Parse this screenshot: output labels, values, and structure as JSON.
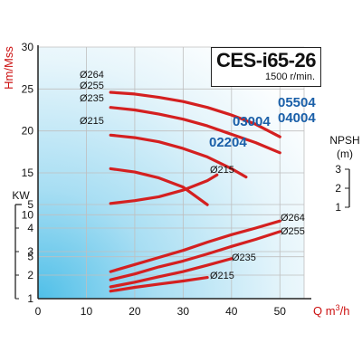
{
  "chart_data": {
    "type": "line",
    "title": "CES-i65-26",
    "subtitle": "1500 r/min.",
    "x_axis": {
      "label": "Q m³/h",
      "label_prefix": "Q m",
      "label_sup": "3",
      "label_suffix": "/h",
      "range": [
        0,
        55
      ],
      "ticks": [
        "0",
        "10",
        "20",
        "30",
        "40",
        "50"
      ]
    },
    "head_axis": {
      "label": "Hm/Mss",
      "range": [
        0,
        30
      ],
      "ticks": [
        "5",
        "10",
        "15",
        "20",
        "25",
        "30"
      ]
    },
    "power_axis": {
      "label": "KW",
      "range": [
        1,
        5
      ],
      "ticks": [
        "1",
        "2",
        "3",
        "4",
        "5"
      ]
    },
    "npsh_axis": {
      "label_line1": "NPSH",
      "label_line2": "(m)",
      "range": [
        1,
        3
      ],
      "ticks": [
        "1",
        "2",
        "3"
      ]
    },
    "grid": true,
    "head_curves": [
      {
        "diameter": "Ø264",
        "model": "05504",
        "x": [
          15,
          20,
          25,
          30,
          35,
          40,
          45,
          50
        ],
        "y": [
          24.6,
          24.4,
          24.0,
          23.5,
          22.8,
          21.9,
          20.8,
          19.3
        ]
      },
      {
        "diameter": "Ø255",
        "model": "04004",
        "x": [
          15,
          20,
          25,
          30,
          35,
          40,
          45,
          50
        ],
        "y": [
          22.8,
          22.5,
          22.0,
          21.4,
          20.6,
          19.6,
          18.6,
          17.4
        ]
      },
      {
        "diameter": "Ø235",
        "model": "03004",
        "x": [
          15,
          20,
          25,
          30,
          35,
          40,
          43
        ],
        "y": [
          19.5,
          19.2,
          18.7,
          17.9,
          16.9,
          15.5,
          14.5
        ]
      },
      {
        "diameter": "Ø215",
        "model": "02204",
        "x": [
          15,
          20,
          25,
          30,
          35
        ],
        "y": [
          15.5,
          15.1,
          14.4,
          13.3,
          11.2
        ]
      }
    ],
    "npsh_curve": {
      "diameter": "Ø215",
      "x": [
        15,
        20,
        25,
        30,
        35,
        37
      ],
      "y": [
        1.2,
        1.35,
        1.55,
        1.9,
        2.4,
        2.7
      ]
    },
    "power_curves": [
      {
        "diameter": "Ø264",
        "x": [
          15,
          20,
          25,
          30,
          35,
          40,
          45,
          50
        ],
        "y": [
          2.15,
          2.45,
          2.75,
          3.05,
          3.4,
          3.72,
          4.0,
          4.3
        ]
      },
      {
        "diameter": "Ø255",
        "x": [
          15,
          20,
          25,
          30,
          35,
          40,
          45,
          50
        ],
        "y": [
          1.8,
          2.05,
          2.35,
          2.6,
          2.9,
          3.22,
          3.52,
          3.85
        ]
      },
      {
        "diameter": "Ø235",
        "x": [
          15,
          20,
          25,
          30,
          35,
          40
        ],
        "y": [
          1.5,
          1.7,
          1.93,
          2.15,
          2.42,
          2.7
        ]
      },
      {
        "diameter": "Ø215",
        "x": [
          15,
          20,
          25,
          30,
          35
        ],
        "y": [
          1.32,
          1.48,
          1.62,
          1.75,
          1.9
        ]
      }
    ],
    "colors": {
      "curve": "#d42020",
      "axis_label": "#cc1111",
      "model_label": "#1a5fa8",
      "grid": "#bfbfbf",
      "axis": "#222222",
      "text": "#111111",
      "background_light": "#ffffff",
      "background_dark": "#5fc6ea"
    }
  }
}
